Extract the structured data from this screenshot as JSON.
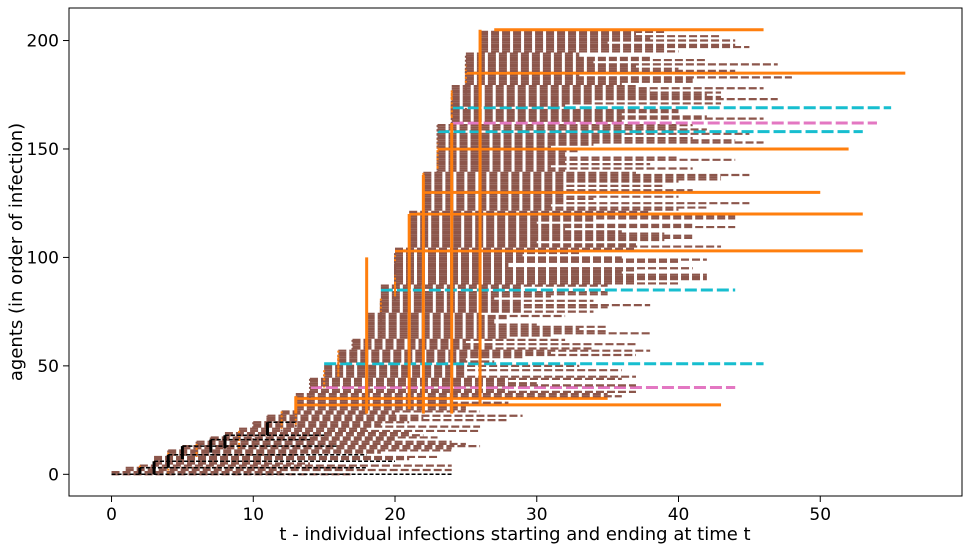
{
  "chart_data": {
    "type": "timeline",
    "title": "",
    "xlabel": "t - individual infections starting and ending at time t",
    "ylabel": "agents (in order of infection)",
    "xlim": [
      -3,
      60
    ],
    "ylim": [
      -10,
      215
    ],
    "xticks": [
      0,
      10,
      20,
      30,
      40,
      50
    ],
    "yticks": [
      0,
      50,
      100,
      150,
      200
    ],
    "grid": false,
    "legend": "none",
    "n_agents": 206,
    "colors": {
      "initial": "#000000",
      "dashed_default": "#8c564b",
      "long": "#ff7f0e",
      "cyan": "#17becf",
      "pink": "#e377c2"
    },
    "infection_time_anchors": [
      [
        0,
        0
      ],
      [
        3,
        5
      ],
      [
        5,
        12
      ],
      [
        8,
        18
      ],
      [
        10,
        22
      ],
      [
        13,
        30
      ],
      [
        15,
        45
      ],
      [
        16,
        52
      ],
      [
        18,
        63
      ],
      [
        19,
        75
      ],
      [
        20,
        88
      ],
      [
        21,
        105
      ],
      [
        22,
        122
      ],
      [
        23,
        140
      ],
      [
        24,
        162
      ],
      [
        25,
        180
      ],
      [
        26,
        195
      ],
      [
        27,
        205
      ],
      [
        28,
        206
      ]
    ],
    "black_initial_segments": [
      {
        "agent": 0,
        "start": 0,
        "end": 24
      },
      {
        "agent": 3,
        "start": 2,
        "end": 18
      },
      {
        "agent": 6,
        "start": 3,
        "end": 20
      },
      {
        "agent": 9,
        "start": 4,
        "end": 18
      },
      {
        "agent": 13,
        "start": 5,
        "end": 16
      },
      {
        "agent": 16,
        "start": 7,
        "end": 14
      },
      {
        "agent": 18,
        "start": 8,
        "end": 15
      },
      {
        "agent": 24,
        "start": 11,
        "end": 13
      }
    ],
    "long_infections": [
      {
        "agent": 32,
        "start": 13,
        "end": 43,
        "color": "long"
      },
      {
        "agent": 35,
        "start": 15,
        "end": 35,
        "color": "long"
      },
      {
        "agent": 40,
        "start": 15,
        "end": 44,
        "color": "pink"
      },
      {
        "agent": 51,
        "start": 17,
        "end": 46,
        "color": "cyan"
      },
      {
        "agent": 85,
        "start": 18,
        "end": 44,
        "color": "cyan"
      },
      {
        "agent": 103,
        "start": 21,
        "end": 53,
        "color": "long"
      },
      {
        "agent": 120,
        "start": 21,
        "end": 53,
        "color": "long"
      },
      {
        "agent": 130,
        "start": 22,
        "end": 50,
        "color": "long"
      },
      {
        "agent": 150,
        "start": 23,
        "end": 52,
        "color": "long"
      },
      {
        "agent": 158,
        "start": 24,
        "end": 53,
        "color": "cyan"
      },
      {
        "agent": 162,
        "start": 24,
        "end": 54,
        "color": "pink"
      },
      {
        "agent": 169,
        "start": 25,
        "end": 55,
        "color": "cyan"
      },
      {
        "agent": 185,
        "start": 25,
        "end": 56,
        "color": "long"
      },
      {
        "agent": 205,
        "start": 26,
        "end": 46,
        "color": "long"
      }
    ]
  }
}
